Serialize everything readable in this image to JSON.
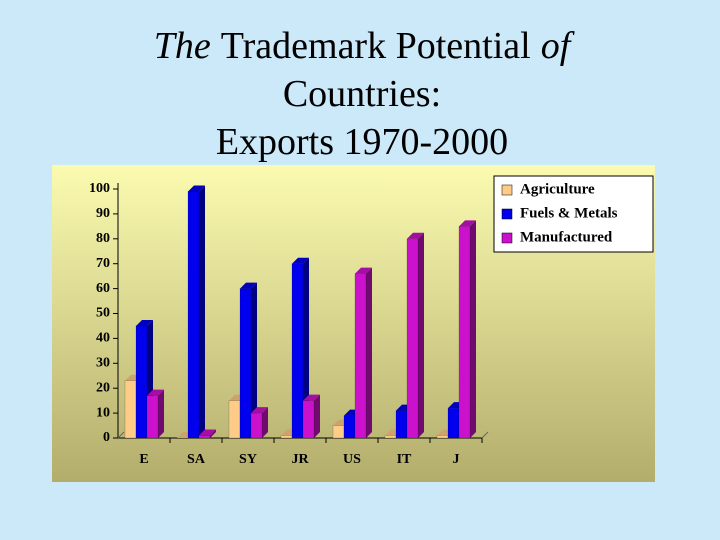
{
  "chart_data": {
    "type": "bar3d",
    "title": [
      [
        "The",
        "Trademark Potential",
        "of"
      ],
      [
        "Countries:"
      ],
      [
        "Exports 1970-2000"
      ]
    ],
    "categories": [
      "E",
      "SA",
      "SY",
      "JR",
      "US",
      "IT",
      "J"
    ],
    "series": [
      {
        "name": "Agriculture",
        "color": "#ffcc88",
        "values": [
          23,
          0,
          15,
          1,
          5,
          1,
          1
        ]
      },
      {
        "name": "Fuels & Metals",
        "color": "#0000ee",
        "values": [
          45,
          99,
          60,
          70,
          9,
          11,
          12
        ]
      },
      {
        "name": "Manufactured",
        "color": "#cc11cc",
        "values": [
          17,
          1,
          10,
          15,
          66,
          80,
          85
        ]
      }
    ],
    "ylim": [
      0,
      100
    ],
    "yticks": [
      0,
      10,
      20,
      30,
      40,
      50,
      60,
      70,
      80,
      90,
      100
    ],
    "legend": "top-right"
  }
}
